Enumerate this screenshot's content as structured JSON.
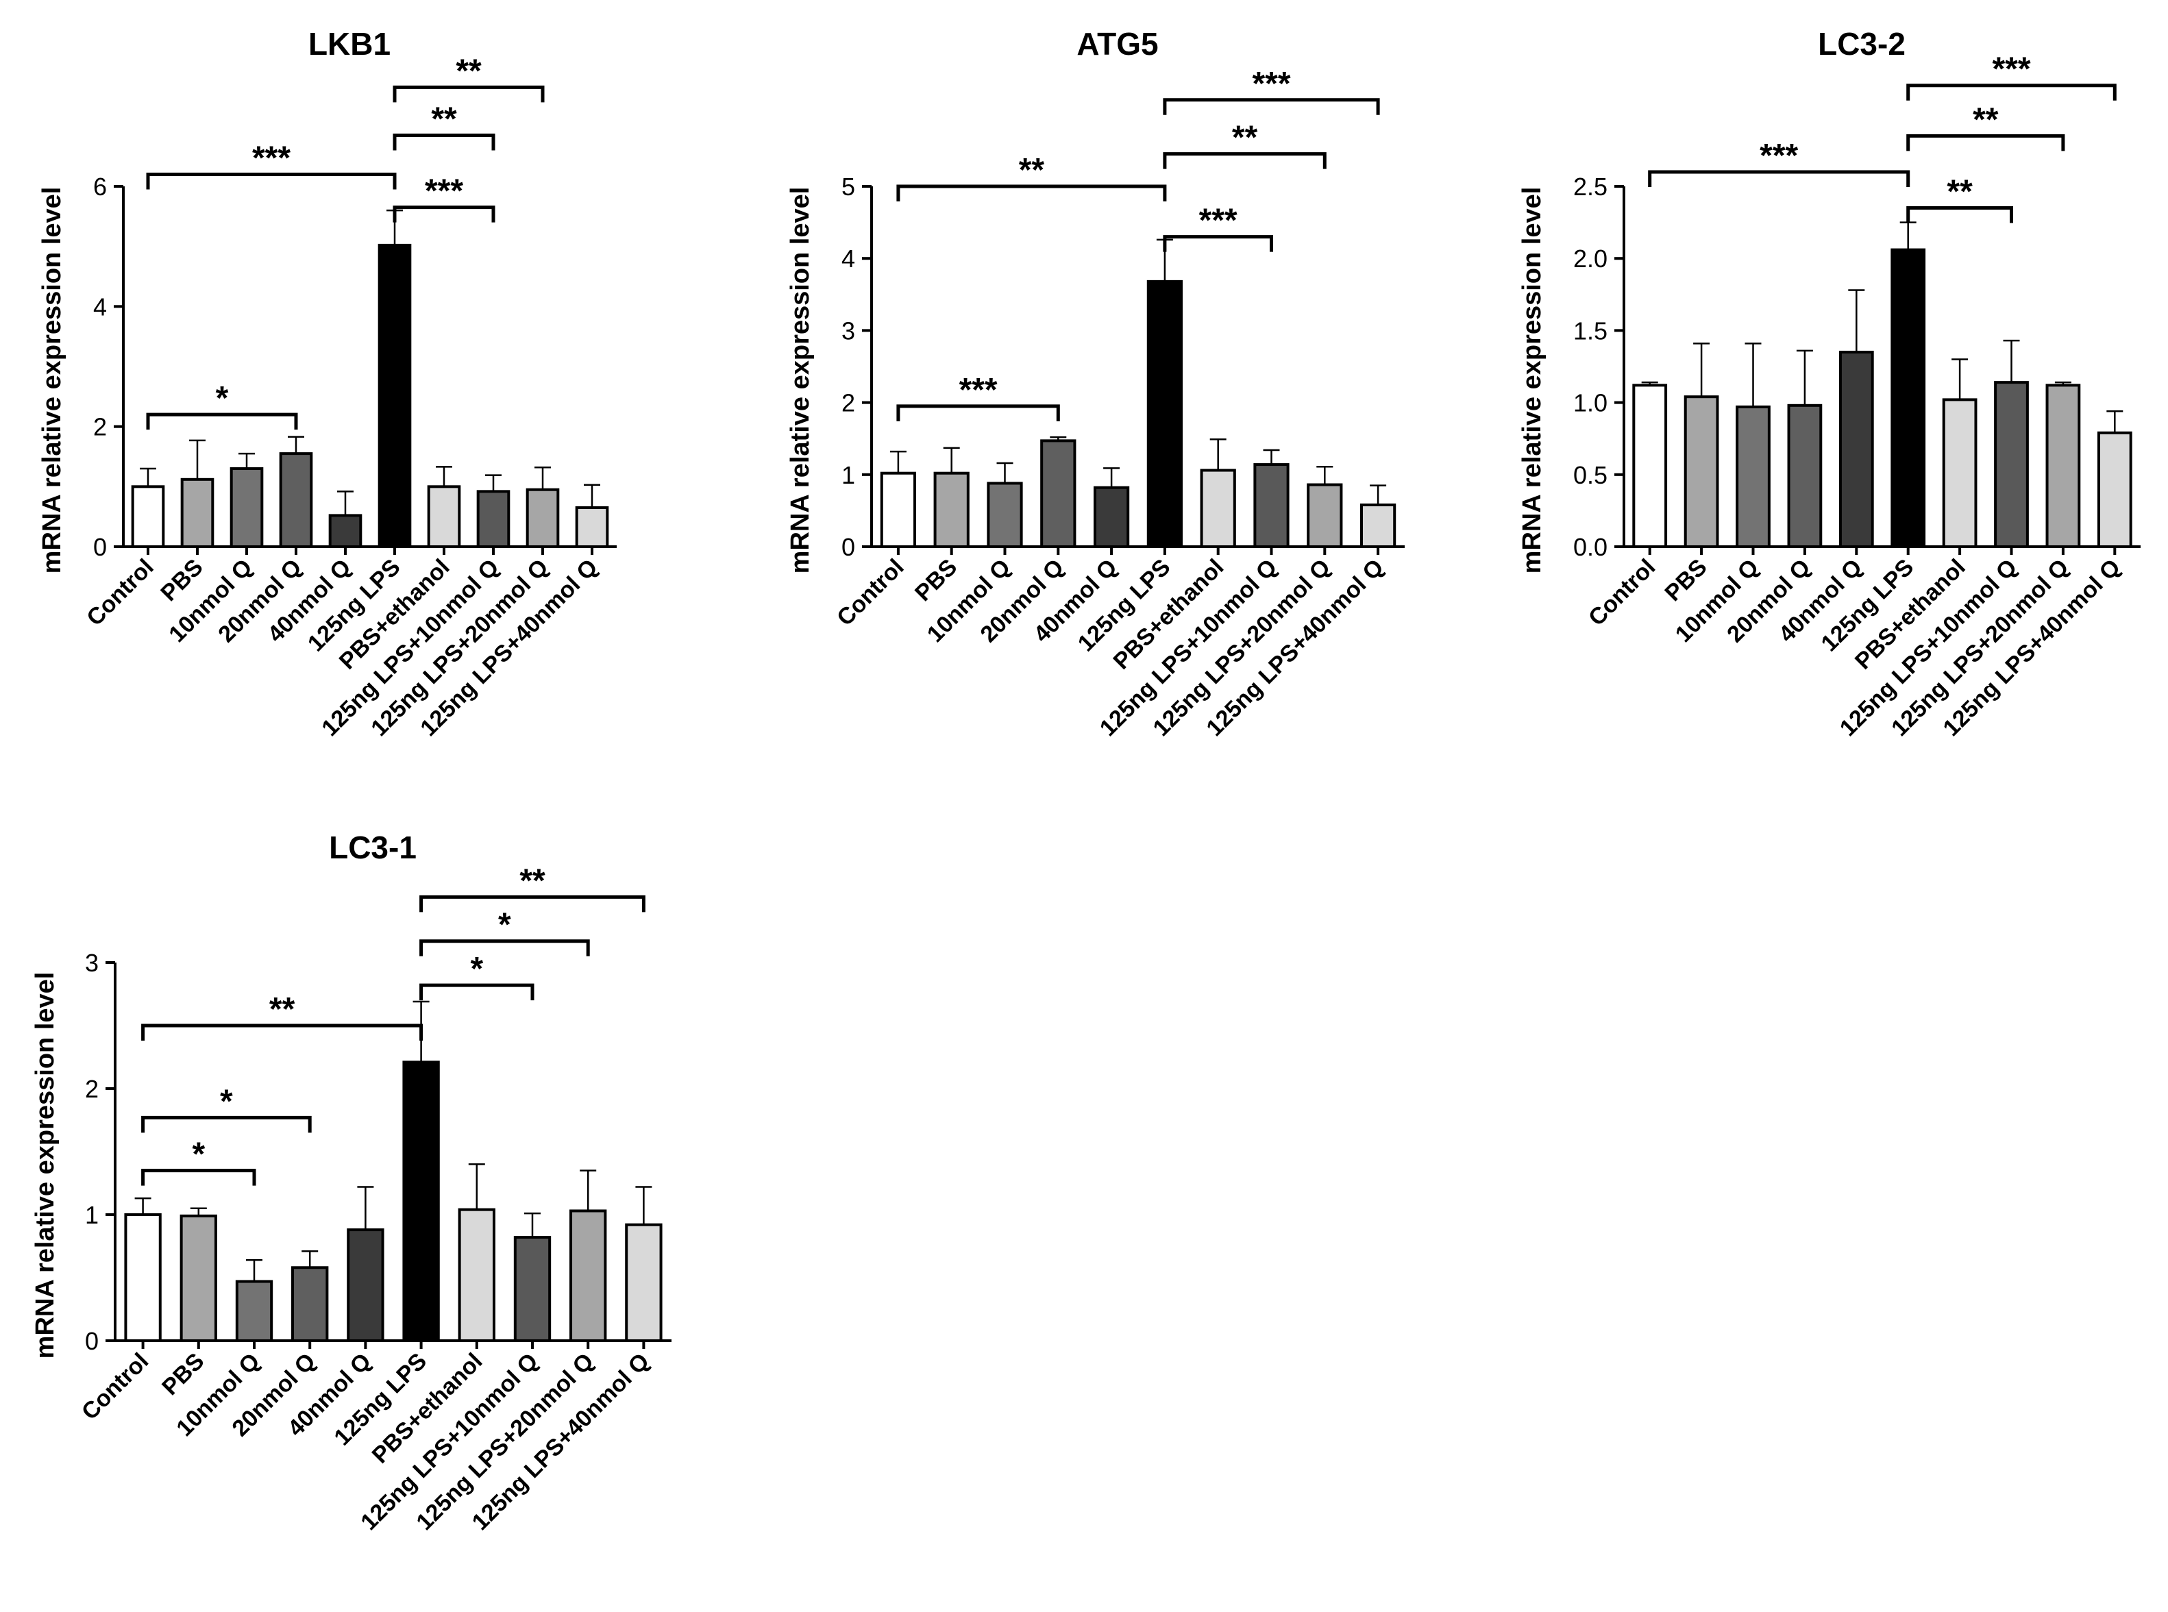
{
  "chart_data": [
    {
      "type": "bar",
      "title": "LKB1",
      "ylabel": "mRNA  relative expression level",
      "xlabel": "",
      "ylim": [
        0,
        6
      ],
      "yticks": [
        0,
        2,
        4,
        6
      ],
      "ytick_labels": [
        "0",
        "2",
        "4",
        "6"
      ],
      "categories": [
        "Control",
        "PBS",
        "10nmol Q",
        "20nmol Q",
        "40nmol Q",
        "125ng LPS",
        "PBS+ethanol",
        "125ng LPS+10nmol Q",
        "125ng LPS+20nmol Q",
        "125ng LPS+40nmol Q"
      ],
      "values": [
        1.0,
        1.12,
        1.3,
        1.55,
        0.52,
        5.02,
        1.0,
        0.92,
        0.95,
        0.65
      ],
      "errors": [
        0.3,
        0.65,
        0.25,
        0.28,
        0.4,
        0.58,
        0.33,
        0.27,
        0.37,
        0.38
      ],
      "bar_colors": [
        "#ffffff",
        "#a6a6a6",
        "#737373",
        "#5f5f5f",
        "#3a3a3a",
        "#000000",
        "#d9d9d9",
        "#595959",
        "#a6a6a6",
        "#d9d9d9"
      ],
      "significance": [
        {
          "from": 0,
          "to": 3,
          "level": 2.2,
          "label": "*"
        },
        {
          "from": 0,
          "to": 5,
          "level": 6.2,
          "label": "***"
        },
        {
          "from": 5,
          "to": 7,
          "level": 5.65,
          "label": "***"
        },
        {
          "from": 5,
          "to": 7,
          "level": 6.85,
          "label": "**"
        },
        {
          "from": 5,
          "to": 8,
          "level": 7.65,
          "label": "**"
        }
      ]
    },
    {
      "type": "bar",
      "title": "ATG5",
      "ylabel": "mRNA  relative expression level",
      "xlabel": "",
      "ylim": [
        0,
        5
      ],
      "yticks": [
        0,
        1,
        2,
        3,
        4,
        5
      ],
      "ytick_labels": [
        "0",
        "1",
        "2",
        "3",
        "4",
        "5"
      ],
      "categories": [
        "Control",
        "PBS",
        "10nmol Q",
        "20nmol Q",
        "40nmol Q",
        "125ng LPS",
        "PBS+ethanol",
        "125ng LPS+10nmol Q",
        "125ng LPS+20nmol Q",
        "125ng LPS+40nmol Q"
      ],
      "values": [
        1.02,
        1.02,
        0.88,
        1.47,
        0.82,
        3.68,
        1.06,
        1.14,
        0.86,
        0.58
      ],
      "errors": [
        0.3,
        0.35,
        0.28,
        0.05,
        0.27,
        0.58,
        0.43,
        0.2,
        0.25,
        0.27
      ],
      "bar_colors": [
        "#ffffff",
        "#a6a6a6",
        "#737373",
        "#5f5f5f",
        "#3a3a3a",
        "#000000",
        "#d9d9d9",
        "#595959",
        "#a6a6a6",
        "#d9d9d9"
      ],
      "significance": [
        {
          "from": 0,
          "to": 3,
          "level": 1.95,
          "label": "***"
        },
        {
          "from": 0,
          "to": 5,
          "level": 5.0,
          "label": "**"
        },
        {
          "from": 5,
          "to": 7,
          "level": 4.3,
          "label": "***"
        },
        {
          "from": 5,
          "to": 8,
          "level": 5.45,
          "label": "**"
        },
        {
          "from": 5,
          "to": 9,
          "level": 6.2,
          "label": "***"
        }
      ]
    },
    {
      "type": "bar",
      "title": "LC3-2",
      "ylabel": "mRNA  relative expression level",
      "xlabel": "",
      "ylim": [
        0,
        2.5
      ],
      "yticks": [
        0,
        0.5,
        1.0,
        1.5,
        2.0,
        2.5
      ],
      "ytick_labels": [
        "0.0",
        "0.5",
        "1.0",
        "1.5",
        "2.0",
        "2.5"
      ],
      "categories": [
        "Control",
        "PBS",
        "10nmol Q",
        "20nmol Q",
        "40nmol Q",
        "125ng LPS",
        "PBS+ethanol",
        "125ng LPS+10nmol Q",
        "125ng LPS+20nmol Q",
        "125ng LPS+40nmol Q"
      ],
      "values": [
        1.12,
        1.04,
        0.97,
        0.98,
        1.35,
        2.06,
        1.02,
        1.14,
        1.12,
        0.79
      ],
      "errors": [
        0.02,
        0.37,
        0.44,
        0.38,
        0.43,
        0.19,
        0.28,
        0.29,
        0.02,
        0.15
      ],
      "bar_colors": [
        "#ffffff",
        "#a6a6a6",
        "#737373",
        "#5f5f5f",
        "#3a3a3a",
        "#000000",
        "#d9d9d9",
        "#595959",
        "#a6a6a6",
        "#d9d9d9"
      ],
      "significance": [
        {
          "from": 0,
          "to": 5,
          "level": 2.6,
          "label": "***"
        },
        {
          "from": 5,
          "to": 7,
          "level": 2.35,
          "label": "**"
        },
        {
          "from": 5,
          "to": 8,
          "level": 2.85,
          "label": "**"
        },
        {
          "from": 5,
          "to": 9,
          "level": 3.2,
          "label": "***"
        }
      ]
    },
    {
      "type": "bar",
      "title": "LC3-1",
      "ylabel": "mRNA  relative expression level",
      "xlabel": "",
      "ylim": [
        0,
        3
      ],
      "yticks": [
        0,
        1,
        2,
        3
      ],
      "ytick_labels": [
        "0",
        "1",
        "2",
        "3"
      ],
      "categories": [
        "Control",
        "PBS",
        "10nmol Q",
        "20nmol Q",
        "40nmol Q",
        "125ng LPS",
        "PBS+ethanol",
        "125ng LPS+10nmol Q",
        "125ng LPS+20nmol Q",
        "125ng LPS+40nmol Q"
      ],
      "values": [
        1.0,
        0.99,
        0.47,
        0.58,
        0.88,
        2.21,
        1.04,
        0.82,
        1.03,
        0.92
      ],
      "errors": [
        0.13,
        0.06,
        0.17,
        0.13,
        0.34,
        0.48,
        0.36,
        0.19,
        0.32,
        0.3
      ],
      "bar_colors": [
        "#ffffff",
        "#a6a6a6",
        "#737373",
        "#5f5f5f",
        "#3a3a3a",
        "#000000",
        "#d9d9d9",
        "#595959",
        "#a6a6a6",
        "#d9d9d9"
      ],
      "significance": [
        {
          "from": 0,
          "to": 2,
          "level": 1.35,
          "label": "*"
        },
        {
          "from": 0,
          "to": 3,
          "level": 1.77,
          "label": "*"
        },
        {
          "from": 0,
          "to": 5,
          "level": 2.5,
          "label": "**"
        },
        {
          "from": 5,
          "to": 7,
          "level": 2.82,
          "label": "*"
        },
        {
          "from": 5,
          "to": 8,
          "level": 3.17,
          "label": "*"
        },
        {
          "from": 5,
          "to": 9,
          "level": 3.52,
          "label": "**"
        }
      ]
    }
  ]
}
